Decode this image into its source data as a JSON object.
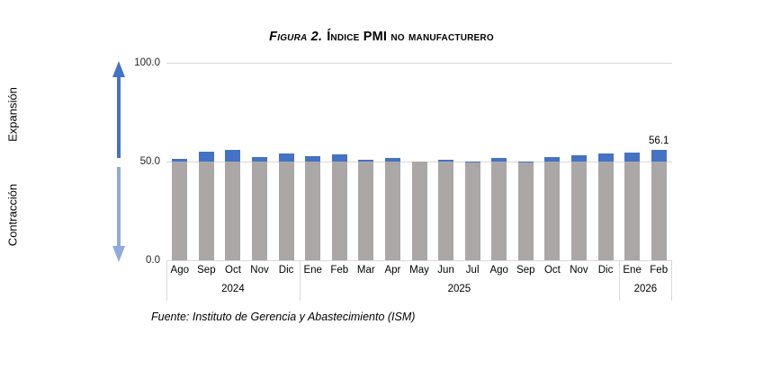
{
  "title": {
    "prefix": "Figura 2.",
    "text": "Índice PMI no manufacturero"
  },
  "axis": {
    "yticks": [
      "100.0",
      "50.0",
      "0.0"
    ],
    "expansion_label": "Expansión",
    "contraction_label": "Contracción"
  },
  "footer": {
    "source": "Fuente: Instituto de Gerencia y Abastecimiento (ISM)"
  },
  "colors": {
    "bar_fill": "#aba7a7",
    "bar_cap": "#4472c4",
    "expansion_arrow": "#4472c4",
    "contraction_arrow": "#8faadc",
    "gridline": "#d9d9d9"
  },
  "chart_data": {
    "type": "bar",
    "title": "Figura 2. Índice PMI no manufacturero",
    "xlabel": "",
    "ylabel": "",
    "ylim": [
      0,
      100
    ],
    "yticks": [
      100.0,
      50.0,
      0.0
    ],
    "baseline": 50,
    "grid": "horizontal",
    "legend": "none",
    "year_groups": [
      {
        "year": "2024",
        "months": [
          "Ago",
          "Sep",
          "Oct",
          "Nov",
          "Dic"
        ]
      },
      {
        "year": "2025",
        "months": [
          "Ene",
          "Feb",
          "Mar",
          "Apr",
          "May",
          "Jun",
          "Jul",
          "Ago",
          "Sep",
          "Oct",
          "Nov",
          "Dic"
        ]
      },
      {
        "year": "2026",
        "months": [
          "Ene",
          "Feb"
        ]
      }
    ],
    "values": [
      51.5,
      54.9,
      56.0,
      52.1,
      54.1,
      52.8,
      53.5,
      50.8,
      51.6,
      50.0,
      50.8,
      50.1,
      52.0,
      50.1,
      52.4,
      53.0,
      54.2,
      54.5,
      56.1
    ],
    "annotation": {
      "index": 18,
      "label": "56.1"
    }
  }
}
